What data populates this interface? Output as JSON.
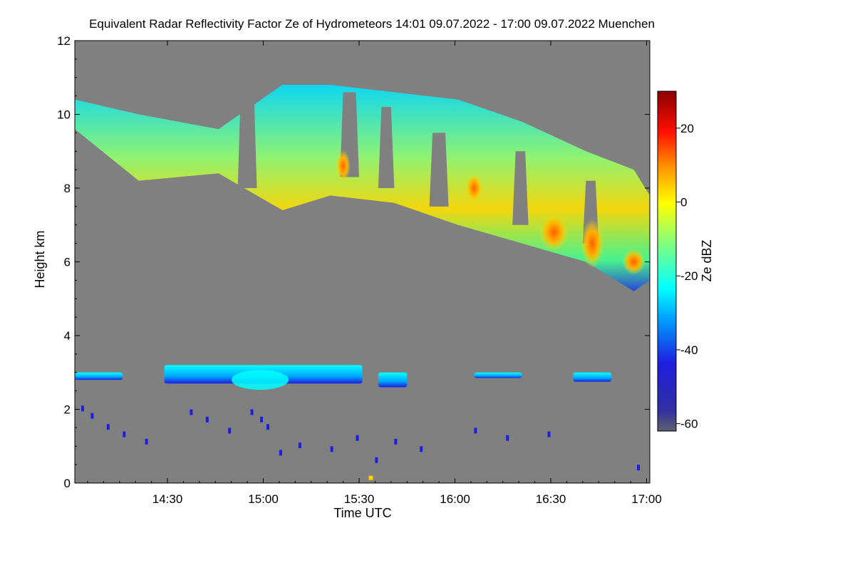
{
  "chart_data": {
    "type": "heatmap",
    "title": "Equivalent Radar Reflectivity Factor Ze of Hydrometeors   14:01 09.07.2022 - 17:00 09.07.2022 Muenchen",
    "xlabel": "Time UTC",
    "ylabel": "Height km",
    "colorbar_label": "Ze dBZ",
    "x_ticks": [
      "14:30",
      "15:00",
      "15:30",
      "16:00",
      "16:30",
      "17:00"
    ],
    "x_tick_minutes": [
      29,
      59,
      89,
      119,
      149,
      179
    ],
    "xlim_minutes": [
      0,
      180
    ],
    "y_ticks": [
      0,
      2,
      4,
      6,
      8,
      10,
      12
    ],
    "ylim": [
      0,
      12
    ],
    "colorbar_ticks": [
      20,
      0,
      -20,
      -40,
      -60
    ],
    "colorbar_range": [
      -62,
      30
    ],
    "background_color": "#808080",
    "colormap": [
      "#1e1ee0",
      "#00b4ff",
      "#00ffff",
      "#7fff7f",
      "#ffff00",
      "#ff8000",
      "#ff0000",
      "#8b0000"
    ],
    "upper_cloud_band": {
      "description_start_minute": 0,
      "top_km": [
        10.4,
        10.0,
        9.6,
        10.8,
        10.8,
        10.6,
        10.4,
        9.8,
        9.0,
        8.5,
        7.8
      ],
      "base_km": [
        9.6,
        8.2,
        8.4,
        7.4,
        7.8,
        7.6,
        7.0,
        6.5,
        6.0,
        5.2,
        5.5
      ],
      "time_minutes": [
        0,
        20,
        45,
        65,
        80,
        100,
        120,
        140,
        160,
        175,
        180
      ],
      "core_max_dBZ": 10
    },
    "lower_layer": {
      "height_km": [
        2.4,
        3.2
      ],
      "time_minutes": [
        0,
        100
      ],
      "core_max_dBZ": -25
    }
  }
}
